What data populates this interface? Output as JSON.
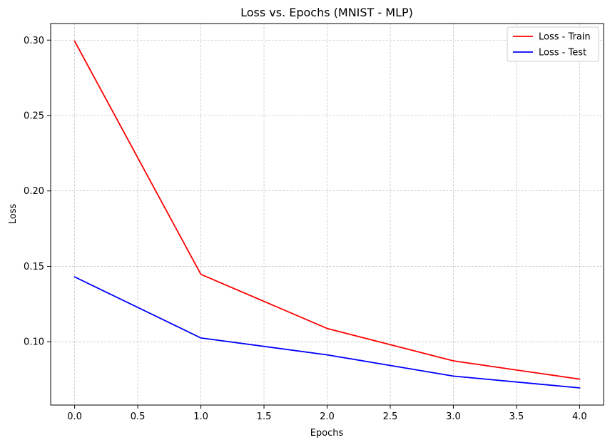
{
  "chart_data": {
    "type": "line",
    "title": "Loss vs. Epochs (MNIST - MLP)",
    "xlabel": "Epochs",
    "ylabel": "Loss",
    "x": [
      0,
      1,
      2,
      3,
      4
    ],
    "xticks": [
      "0.0",
      "0.5",
      "1.0",
      "1.5",
      "2.0",
      "2.5",
      "3.0",
      "3.5",
      "4.0"
    ],
    "yticks": [
      "0.10",
      "0.15",
      "0.20",
      "0.25",
      "0.30"
    ],
    "xlim": [
      -0.19,
      4.19
    ],
    "ylim": [
      0.058,
      0.311
    ],
    "grid": true,
    "legend_position": "top-right",
    "series": [
      {
        "name": "Loss - Train",
        "color": "#ff0000",
        "values": [
          0.2993,
          0.1447,
          0.1088,
          0.0873,
          0.0752
        ]
      },
      {
        "name": "Loss - Test",
        "color": "#0000ff",
        "values": [
          0.143,
          0.1025,
          0.0913,
          0.0772,
          0.0694
        ]
      }
    ]
  }
}
